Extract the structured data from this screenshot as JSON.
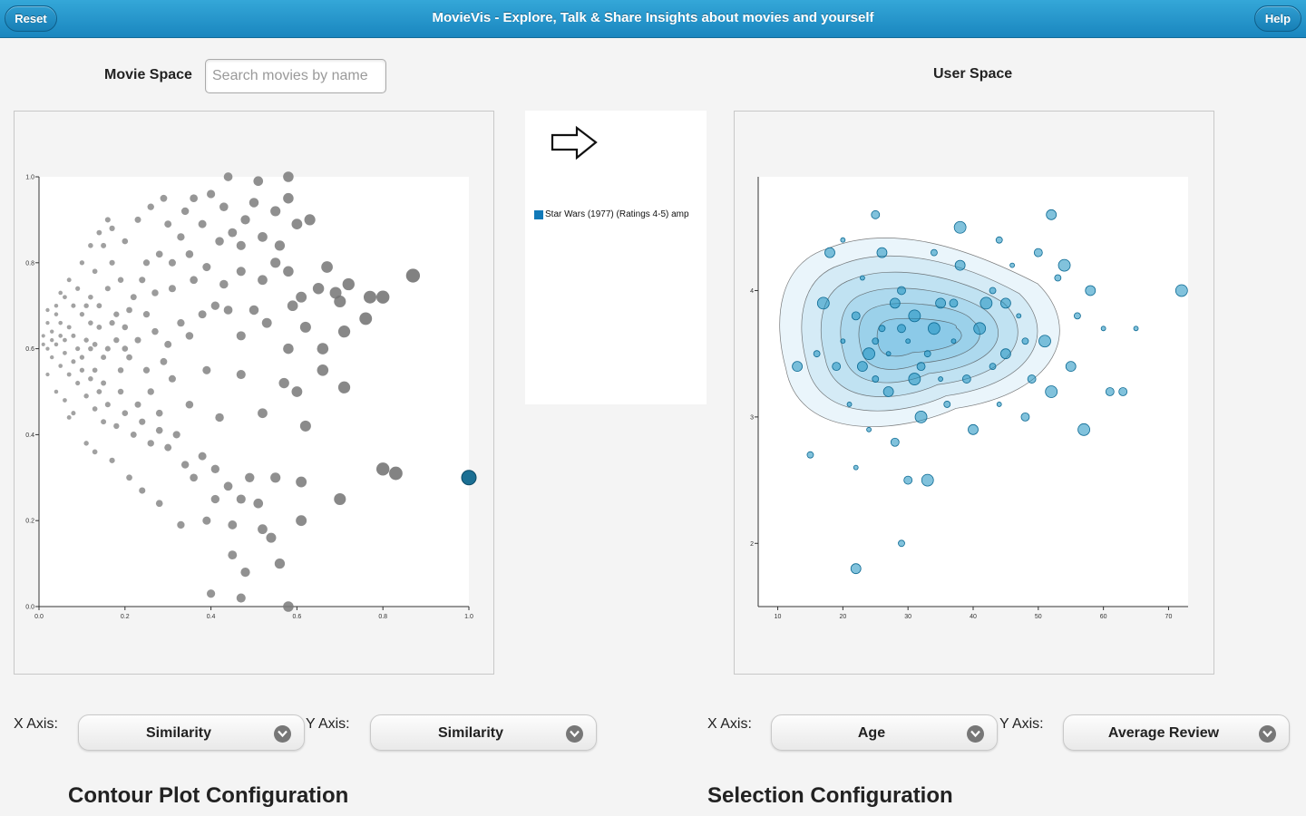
{
  "header": {
    "title": "MovieVis - Explore, Talk & Share Insights about movies and yourself",
    "reset_label": "Reset",
    "help_label": "Help"
  },
  "movie_space": {
    "label": "Movie Space",
    "search_placeholder": "Search movies by name",
    "x_axis_label": "X Axis:",
    "x_axis_value": "Similarity",
    "y_axis_label": "Y Axis:",
    "y_axis_value": "Similarity"
  },
  "selection_legend": {
    "arrow_icon": "arrow-right-icon",
    "item_label": "Star Wars (1977) (Ratings 4-5) amp",
    "item_color": "#1179b8"
  },
  "user_space": {
    "label": "User Space",
    "x_axis_label": "X Axis:",
    "x_axis_value": "Age",
    "y_axis_label": "Y Axis:",
    "y_axis_value": "Average Review"
  },
  "sections": {
    "contour_title": "Contour Plot Configuration",
    "selection_title": "Selection Configuration"
  },
  "colors": {
    "header_blue": "#1a86bf",
    "movie_point": "#666666",
    "user_point": "#1a8fbf",
    "contour_fill": "#5bb5e0"
  },
  "chart_data": [
    {
      "type": "scatter",
      "title": "",
      "xlabel": "Similarity",
      "ylabel": "Similarity",
      "xlim": [
        0,
        1
      ],
      "ylim": [
        0,
        1
      ],
      "x_ticks": [
        "0.0",
        "0.2",
        "0.4",
        "0.6",
        "0.8",
        "1.0"
      ],
      "y_ticks": [
        "0.0",
        "0.2",
        "0.4",
        "0.6",
        "0.8",
        "1.0"
      ],
      "selected_point": {
        "x": 1.0,
        "y": 0.3
      },
      "points": [
        {
          "x": 0.34,
          "y": 0.92
        },
        {
          "x": 0.36,
          "y": 0.95
        },
        {
          "x": 0.4,
          "y": 0.96
        },
        {
          "x": 0.43,
          "y": 0.93
        },
        {
          "x": 0.38,
          "y": 0.89
        },
        {
          "x": 0.45,
          "y": 0.87
        },
        {
          "x": 0.48,
          "y": 0.9
        },
        {
          "x": 0.52,
          "y": 0.86
        },
        {
          "x": 0.5,
          "y": 0.94
        },
        {
          "x": 0.55,
          "y": 0.92
        },
        {
          "x": 0.44,
          "y": 1.0
        },
        {
          "x": 0.51,
          "y": 0.99
        },
        {
          "x": 0.58,
          "y": 1.0
        },
        {
          "x": 0.58,
          "y": 0.95
        },
        {
          "x": 0.6,
          "y": 0.89
        },
        {
          "x": 0.63,
          "y": 0.9
        },
        {
          "x": 0.56,
          "y": 0.84
        },
        {
          "x": 0.47,
          "y": 0.84
        },
        {
          "x": 0.42,
          "y": 0.85
        },
        {
          "x": 0.3,
          "y": 0.89
        },
        {
          "x": 0.33,
          "y": 0.86
        },
        {
          "x": 0.28,
          "y": 0.82
        },
        {
          "x": 0.25,
          "y": 0.8
        },
        {
          "x": 0.31,
          "y": 0.8
        },
        {
          "x": 0.35,
          "y": 0.82
        },
        {
          "x": 0.39,
          "y": 0.79
        },
        {
          "x": 0.36,
          "y": 0.76
        },
        {
          "x": 0.43,
          "y": 0.75
        },
        {
          "x": 0.47,
          "y": 0.78
        },
        {
          "x": 0.52,
          "y": 0.76
        },
        {
          "x": 0.55,
          "y": 0.8
        },
        {
          "x": 0.58,
          "y": 0.78
        },
        {
          "x": 0.61,
          "y": 0.72
        },
        {
          "x": 0.65,
          "y": 0.74
        },
        {
          "x": 0.67,
          "y": 0.79
        },
        {
          "x": 0.7,
          "y": 0.71
        },
        {
          "x": 0.72,
          "y": 0.75
        },
        {
          "x": 0.69,
          "y": 0.73
        },
        {
          "x": 0.59,
          "y": 0.7
        },
        {
          "x": 0.53,
          "y": 0.66
        },
        {
          "x": 0.5,
          "y": 0.69
        },
        {
          "x": 0.47,
          "y": 0.63
        },
        {
          "x": 0.44,
          "y": 0.69
        },
        {
          "x": 0.41,
          "y": 0.7
        },
        {
          "x": 0.38,
          "y": 0.68
        },
        {
          "x": 0.35,
          "y": 0.63
        },
        {
          "x": 0.33,
          "y": 0.66
        },
        {
          "x": 0.3,
          "y": 0.61
        },
        {
          "x": 0.27,
          "y": 0.64
        },
        {
          "x": 0.25,
          "y": 0.68
        },
        {
          "x": 0.23,
          "y": 0.62
        },
        {
          "x": 0.2,
          "y": 0.65
        },
        {
          "x": 0.22,
          "y": 0.72
        },
        {
          "x": 0.19,
          "y": 0.76
        },
        {
          "x": 0.17,
          "y": 0.8
        },
        {
          "x": 0.15,
          "y": 0.84
        },
        {
          "x": 0.13,
          "y": 0.78
        },
        {
          "x": 0.12,
          "y": 0.72
        },
        {
          "x": 0.1,
          "y": 0.68
        },
        {
          "x": 0.09,
          "y": 0.74
        },
        {
          "x": 0.08,
          "y": 0.7
        },
        {
          "x": 0.06,
          "y": 0.72
        },
        {
          "x": 0.05,
          "y": 0.66
        },
        {
          "x": 0.04,
          "y": 0.68
        },
        {
          "x": 0.03,
          "y": 0.64
        },
        {
          "x": 0.02,
          "y": 0.66
        },
        {
          "x": 0.01,
          "y": 0.63
        },
        {
          "x": 0.02,
          "y": 0.6
        },
        {
          "x": 0.03,
          "y": 0.58
        },
        {
          "x": 0.04,
          "y": 0.61
        },
        {
          "x": 0.05,
          "y": 0.56
        },
        {
          "x": 0.06,
          "y": 0.59
        },
        {
          "x": 0.07,
          "y": 0.54
        },
        {
          "x": 0.08,
          "y": 0.57
        },
        {
          "x": 0.09,
          "y": 0.52
        },
        {
          "x": 0.1,
          "y": 0.55
        },
        {
          "x": 0.11,
          "y": 0.49
        },
        {
          "x": 0.12,
          "y": 0.53
        },
        {
          "x": 0.13,
          "y": 0.46
        },
        {
          "x": 0.14,
          "y": 0.5
        },
        {
          "x": 0.15,
          "y": 0.43
        },
        {
          "x": 0.16,
          "y": 0.47
        },
        {
          "x": 0.18,
          "y": 0.42
        },
        {
          "x": 0.2,
          "y": 0.45
        },
        {
          "x": 0.22,
          "y": 0.4
        },
        {
          "x": 0.24,
          "y": 0.43
        },
        {
          "x": 0.26,
          "y": 0.38
        },
        {
          "x": 0.28,
          "y": 0.41
        },
        {
          "x": 0.3,
          "y": 0.37
        },
        {
          "x": 0.32,
          "y": 0.4
        },
        {
          "x": 0.34,
          "y": 0.33
        },
        {
          "x": 0.36,
          "y": 0.3
        },
        {
          "x": 0.38,
          "y": 0.35
        },
        {
          "x": 0.41,
          "y": 0.32
        },
        {
          "x": 0.41,
          "y": 0.25
        },
        {
          "x": 0.44,
          "y": 0.28
        },
        {
          "x": 0.47,
          "y": 0.25
        },
        {
          "x": 0.49,
          "y": 0.3
        },
        {
          "x": 0.51,
          "y": 0.24
        },
        {
          "x": 0.55,
          "y": 0.3
        },
        {
          "x": 0.52,
          "y": 0.18
        },
        {
          "x": 0.45,
          "y": 0.19
        },
        {
          "x": 0.39,
          "y": 0.2
        },
        {
          "x": 0.33,
          "y": 0.19
        },
        {
          "x": 0.28,
          "y": 0.24
        },
        {
          "x": 0.24,
          "y": 0.27
        },
        {
          "x": 0.21,
          "y": 0.3
        },
        {
          "x": 0.17,
          "y": 0.34
        },
        {
          "x": 0.13,
          "y": 0.36
        },
        {
          "x": 0.11,
          "y": 0.38
        },
        {
          "x": 0.08,
          "y": 0.45
        },
        {
          "x": 0.06,
          "y": 0.48
        },
        {
          "x": 0.04,
          "y": 0.5
        },
        {
          "x": 0.07,
          "y": 0.44
        },
        {
          "x": 0.02,
          "y": 0.54
        },
        {
          "x": 0.31,
          "y": 0.53
        },
        {
          "x": 0.35,
          "y": 0.47
        },
        {
          "x": 0.26,
          "y": 0.5
        },
        {
          "x": 0.19,
          "y": 0.55
        },
        {
          "x": 0.16,
          "y": 0.6
        },
        {
          "x": 0.14,
          "y": 0.65
        },
        {
          "x": 0.11,
          "y": 0.62
        },
        {
          "x": 0.18,
          "y": 0.68
        },
        {
          "x": 0.21,
          "y": 0.58
        },
        {
          "x": 0.25,
          "y": 0.55
        },
        {
          "x": 0.29,
          "y": 0.57
        },
        {
          "x": 0.27,
          "y": 0.73
        },
        {
          "x": 0.31,
          "y": 0.74
        },
        {
          "x": 0.24,
          "y": 0.76
        },
        {
          "x": 0.2,
          "y": 0.85
        },
        {
          "x": 0.23,
          "y": 0.9
        },
        {
          "x": 0.26,
          "y": 0.93
        },
        {
          "x": 0.29,
          "y": 0.95
        },
        {
          "x": 0.62,
          "y": 0.65
        },
        {
          "x": 0.66,
          "y": 0.6
        },
        {
          "x": 0.71,
          "y": 0.64
        },
        {
          "x": 0.76,
          "y": 0.67
        },
        {
          "x": 0.77,
          "y": 0.72
        },
        {
          "x": 0.8,
          "y": 0.72
        },
        {
          "x": 0.87,
          "y": 0.77
        },
        {
          "x": 0.71,
          "y": 0.51
        },
        {
          "x": 0.8,
          "y": 0.32
        },
        {
          "x": 0.83,
          "y": 0.31
        },
        {
          "x": 0.7,
          "y": 0.25
        },
        {
          "x": 0.61,
          "y": 0.29
        },
        {
          "x": 0.61,
          "y": 0.2
        },
        {
          "x": 0.54,
          "y": 0.16
        },
        {
          "x": 0.56,
          "y": 0.1
        },
        {
          "x": 0.45,
          "y": 0.12
        },
        {
          "x": 0.48,
          "y": 0.08
        },
        {
          "x": 0.4,
          "y": 0.03
        },
        {
          "x": 0.47,
          "y": 0.02
        },
        {
          "x": 0.58,
          "y": 0.0
        },
        {
          "x": 0.47,
          "y": 0.54
        },
        {
          "x": 0.52,
          "y": 0.45
        },
        {
          "x": 0.39,
          "y": 0.55
        },
        {
          "x": 0.42,
          "y": 0.44
        },
        {
          "x": 0.28,
          "y": 0.45
        },
        {
          "x": 0.23,
          "y": 0.47
        },
        {
          "x": 0.15,
          "y": 0.58
        },
        {
          "x": 0.6,
          "y": 0.5
        },
        {
          "x": 0.62,
          "y": 0.42
        },
        {
          "x": 0.58,
          "y": 0.6
        },
        {
          "x": 0.57,
          "y": 0.52
        },
        {
          "x": 0.66,
          "y": 0.55
        },
        {
          "x": 0.05,
          "y": 0.63
        },
        {
          "x": 0.07,
          "y": 0.65
        },
        {
          "x": 0.04,
          "y": 0.7
        },
        {
          "x": 0.03,
          "y": 0.62
        },
        {
          "x": 0.06,
          "y": 0.62
        },
        {
          "x": 0.08,
          "y": 0.63
        },
        {
          "x": 0.09,
          "y": 0.6
        },
        {
          "x": 0.1,
          "y": 0.58
        },
        {
          "x": 0.12,
          "y": 0.6
        },
        {
          "x": 0.13,
          "y": 0.55
        },
        {
          "x": 0.14,
          "y": 0.7
        },
        {
          "x": 0.16,
          "y": 0.74
        },
        {
          "x": 0.17,
          "y": 0.66
        },
        {
          "x": 0.18,
          "y": 0.62
        },
        {
          "x": 0.2,
          "y": 0.6
        },
        {
          "x": 0.21,
          "y": 0.69
        },
        {
          "x": 0.11,
          "y": 0.7
        },
        {
          "x": 0.12,
          "y": 0.66
        },
        {
          "x": 0.13,
          "y": 0.61
        },
        {
          "x": 0.15,
          "y": 0.52
        },
        {
          "x": 0.19,
          "y": 0.5
        },
        {
          "x": 0.01,
          "y": 0.61
        },
        {
          "x": 0.02,
          "y": 0.69
        },
        {
          "x": 0.05,
          "y": 0.73
        },
        {
          "x": 0.07,
          "y": 0.76
        },
        {
          "x": 0.1,
          "y": 0.8
        },
        {
          "x": 0.12,
          "y": 0.84
        },
        {
          "x": 0.14,
          "y": 0.87
        },
        {
          "x": 0.17,
          "y": 0.88
        },
        {
          "x": 0.16,
          "y": 0.9
        }
      ]
    },
    {
      "type": "scatter",
      "title": "",
      "xlabel": "Age",
      "ylabel": "Average Review",
      "xlim": [
        7,
        73
      ],
      "ylim": [
        1.5,
        4.9
      ],
      "x_ticks": [
        "10",
        "20",
        "30",
        "40",
        "50",
        "60",
        "70"
      ],
      "y_ticks": [
        "2",
        "3",
        "4"
      ],
      "contour": true,
      "points": [
        {
          "x": 20,
          "y": 3.6
        },
        {
          "x": 22,
          "y": 3.8
        },
        {
          "x": 24,
          "y": 3.5
        },
        {
          "x": 26,
          "y": 3.7
        },
        {
          "x": 28,
          "y": 3.9
        },
        {
          "x": 30,
          "y": 3.6
        },
        {
          "x": 32,
          "y": 3.4
        },
        {
          "x": 34,
          "y": 3.7
        },
        {
          "x": 25,
          "y": 3.3
        },
        {
          "x": 27,
          "y": 3.2
        },
        {
          "x": 23,
          "y": 4.1
        },
        {
          "x": 29,
          "y": 4.0
        },
        {
          "x": 31,
          "y": 3.8
        },
        {
          "x": 33,
          "y": 3.5
        },
        {
          "x": 35,
          "y": 3.9
        },
        {
          "x": 37,
          "y": 3.6
        },
        {
          "x": 39,
          "y": 3.3
        },
        {
          "x": 41,
          "y": 3.7
        },
        {
          "x": 43,
          "y": 4.0
        },
        {
          "x": 45,
          "y": 3.5
        },
        {
          "x": 47,
          "y": 3.8
        },
        {
          "x": 49,
          "y": 3.3
        },
        {
          "x": 51,
          "y": 3.6
        },
        {
          "x": 53,
          "y": 4.1
        },
        {
          "x": 55,
          "y": 3.4
        },
        {
          "x": 21,
          "y": 3.1
        },
        {
          "x": 19,
          "y": 3.4
        },
        {
          "x": 17,
          "y": 3.9
        },
        {
          "x": 16,
          "y": 3.5
        },
        {
          "x": 18,
          "y": 4.3
        },
        {
          "x": 24,
          "y": 2.9
        },
        {
          "x": 28,
          "y": 2.8
        },
        {
          "x": 32,
          "y": 3.0
        },
        {
          "x": 36,
          "y": 3.1
        },
        {
          "x": 40,
          "y": 2.9
        },
        {
          "x": 44,
          "y": 3.1
        },
        {
          "x": 48,
          "y": 3.0
        },
        {
          "x": 52,
          "y": 3.2
        },
        {
          "x": 56,
          "y": 3.8
        },
        {
          "x": 58,
          "y": 4.0
        },
        {
          "x": 60,
          "y": 3.7
        },
        {
          "x": 61,
          "y": 3.2
        },
        {
          "x": 57,
          "y": 2.9
        },
        {
          "x": 43,
          "y": 3.4
        },
        {
          "x": 38,
          "y": 4.2
        },
        {
          "x": 46,
          "y": 4.2
        },
        {
          "x": 50,
          "y": 4.3
        },
        {
          "x": 54,
          "y": 4.2
        },
        {
          "x": 34,
          "y": 4.3
        },
        {
          "x": 26,
          "y": 4.3
        },
        {
          "x": 22,
          "y": 2.6
        },
        {
          "x": 30,
          "y": 2.5
        },
        {
          "x": 33,
          "y": 2.5
        },
        {
          "x": 29,
          "y": 2.0
        },
        {
          "x": 22,
          "y": 1.8
        },
        {
          "x": 20,
          "y": 4.4
        },
        {
          "x": 25,
          "y": 4.6
        },
        {
          "x": 38,
          "y": 4.5
        },
        {
          "x": 44,
          "y": 4.4
        },
        {
          "x": 52,
          "y": 4.6
        },
        {
          "x": 65,
          "y": 3.7
        },
        {
          "x": 63,
          "y": 3.2
        },
        {
          "x": 72,
          "y": 4.0
        },
        {
          "x": 15,
          "y": 2.7
        },
        {
          "x": 13,
          "y": 3.4
        },
        {
          "x": 27,
          "y": 3.5
        },
        {
          "x": 29,
          "y": 3.7
        },
        {
          "x": 31,
          "y": 3.3
        },
        {
          "x": 25,
          "y": 3.6
        },
        {
          "x": 23,
          "y": 3.4
        },
        {
          "x": 35,
          "y": 3.3
        },
        {
          "x": 37,
          "y": 3.9
        },
        {
          "x": 42,
          "y": 3.9
        },
        {
          "x": 48,
          "y": 3.6
        },
        {
          "x": 45,
          "y": 3.9
        }
      ]
    }
  ]
}
